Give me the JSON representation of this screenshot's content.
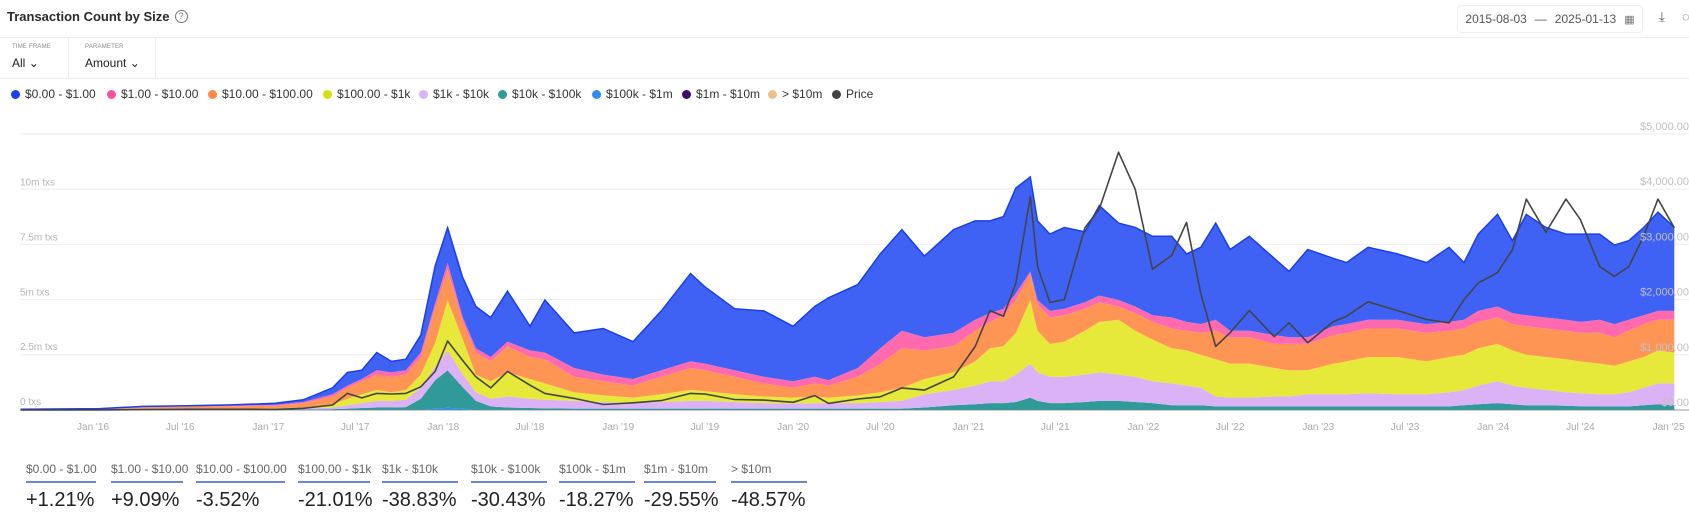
{
  "header": {
    "title": "Transaction Count by Size",
    "help_icon": "?",
    "date_from": "2015-08-03",
    "date_sep": "—",
    "date_to": "2025-01-13",
    "calendar_icon": "▦",
    "download_icon": "⤓",
    "more_icon": "◌"
  },
  "filters": {
    "time_frame": {
      "label": "TIME FRAME",
      "value": "All",
      "chevron": "⌄"
    },
    "parameter": {
      "label": "PARAMETER",
      "value": "Amount",
      "chevron": "⌄"
    }
  },
  "legend": [
    {
      "label": "$0.00 - $1.00",
      "color": "#1c3ff0"
    },
    {
      "label": "$1.00 - $10.00",
      "color": "#ff4fa3"
    },
    {
      "label": "$10.00 - $100.00",
      "color": "#ff8a3d"
    },
    {
      "label": "$100.00 - $1k",
      "color": "#d4e012"
    },
    {
      "label": "$1k - $10k",
      "color": "#dcb2f7"
    },
    {
      "label": "$10k - $100k",
      "color": "#2f9a97"
    },
    {
      "label": "$100k - $1m",
      "color": "#2a8ff0"
    },
    {
      "label": "$1m - $10m",
      "color": "#3e0a6b"
    },
    {
      "label": "> $10m",
      "color": "#efbf8e"
    },
    {
      "label": "Price",
      "color": "#444444"
    }
  ],
  "chart_data": {
    "type": "area",
    "stacked": true,
    "title": "Transaction Count by Size",
    "x_type": "date",
    "xlim": [
      "2015-08-03",
      "2025-01-13"
    ],
    "x_ticks": [
      "Jan '16",
      "Jul '16",
      "Jan '17",
      "Jul '17",
      "Jan '18",
      "Jul '18",
      "Jan '19",
      "Jul '19",
      "Jan '20",
      "Jul '20",
      "Jan '21",
      "Jul '21",
      "Jan '22",
      "Jul '22",
      "Jan '23",
      "Jul '23",
      "Jan '24",
      "Jul '24",
      "Jan '25"
    ],
    "x_tick_dates": [
      "2016-01-01",
      "2016-07-01",
      "2017-01-01",
      "2017-07-01",
      "2018-01-01",
      "2018-07-01",
      "2019-01-01",
      "2019-07-01",
      "2020-01-01",
      "2020-07-01",
      "2021-01-01",
      "2021-07-01",
      "2022-01-01",
      "2022-07-01",
      "2023-01-01",
      "2023-07-01",
      "2024-01-01",
      "2024-07-01",
      "2025-01-01"
    ],
    "y_left": {
      "unit": "m txs",
      "ylim": [
        0,
        10
      ],
      "ticks": [
        "0 txs",
        "2.5m txs",
        "5m txs",
        "7.5m txs",
        "10m txs"
      ],
      "tick_values": [
        0,
        2.5,
        5,
        7.5,
        10
      ]
    },
    "y_right": {
      "ylim": [
        0,
        5000
      ],
      "ticks": [
        "$0.00",
        "$1,000.00",
        "$2,000.00",
        "$3,000.00",
        "$4,000.00",
        "$5,000.00"
      ],
      "tick_values": [
        0,
        1000,
        2000,
        3000,
        4000,
        5000
      ]
    },
    "grid": true,
    "legend_position": "top-left",
    "x": [
      "2015-08-03",
      "2016-01-15",
      "2016-04-15",
      "2016-07-15",
      "2016-10-15",
      "2017-01-15",
      "2017-03-15",
      "2017-05-15",
      "2017-06-15",
      "2017-07-15",
      "2017-08-15",
      "2017-09-15",
      "2017-10-15",
      "2017-11-15",
      "2017-12-15",
      "2018-01-10",
      "2018-02-10",
      "2018-03-10",
      "2018-04-10",
      "2018-05-15",
      "2018-07-01",
      "2018-08-01",
      "2018-10-01",
      "2018-12-01",
      "2019-02-01",
      "2019-04-01",
      "2019-06-01",
      "2019-07-01",
      "2019-09-01",
      "2019-11-01",
      "2020-01-01",
      "2020-02-15",
      "2020-03-15",
      "2020-05-15",
      "2020-07-01",
      "2020-08-15",
      "2020-10-01",
      "2020-12-01",
      "2021-01-15",
      "2021-02-15",
      "2021-03-15",
      "2021-04-10",
      "2021-05-10",
      "2021-05-25",
      "2021-06-20",
      "2021-07-20",
      "2021-09-01",
      "2021-10-01",
      "2021-11-10",
      "2021-12-15",
      "2022-01-20",
      "2022-03-01",
      "2022-04-01",
      "2022-05-01",
      "2022-06-01",
      "2022-07-01",
      "2022-08-10",
      "2022-10-01",
      "2022-11-01",
      "2022-12-10",
      "2023-02-01",
      "2023-03-01",
      "2023-04-15",
      "2023-06-15",
      "2023-08-15",
      "2023-10-01",
      "2023-11-01",
      "2023-12-01",
      "2024-01-10",
      "2024-02-10",
      "2024-03-10",
      "2024-04-20",
      "2024-06-01",
      "2024-07-01",
      "2024-08-10",
      "2024-09-10",
      "2024-10-10",
      "2024-11-10",
      "2024-12-10",
      "2025-01-13"
    ],
    "series": [
      {
        "name": "> $10m",
        "color": "#efbf8e",
        "values": [
          0.001,
          0.001,
          0.001,
          0.001,
          0.001,
          0.001,
          0.001,
          0.001,
          0.001,
          0.001,
          0.001,
          0.001,
          0.001,
          0.001,
          0.001,
          0.001,
          0.001,
          0.001,
          0.001,
          0.001,
          0.001,
          0.001,
          0.001,
          0.001,
          0.001,
          0.001,
          0.001,
          0.001,
          0.001,
          0.001,
          0.001,
          0.001,
          0.001,
          0.001,
          0.001,
          0.001,
          0.001,
          0.001,
          0.001,
          0.001,
          0.001,
          0.001,
          0.001,
          0.001,
          0.001,
          0.001,
          0.001,
          0.001,
          0.001,
          0.001,
          0.001,
          0.001,
          0.001,
          0.001,
          0.001,
          0.001,
          0.001,
          0.001,
          0.001,
          0.001,
          0.001,
          0.001,
          0.001,
          0.001,
          0.001,
          0.001,
          0.001,
          0.001,
          0.001,
          0.001,
          0.001,
          0.001,
          0.001,
          0.001,
          0.001,
          0.001,
          0.001,
          0.001,
          0.001,
          0.001
        ]
      },
      {
        "name": "$1m - $10m",
        "color": "#3e0a6b",
        "values": [
          0.002,
          0.002,
          0.002,
          0.002,
          0.002,
          0.002,
          0.002,
          0.002,
          0.002,
          0.002,
          0.002,
          0.002,
          0.002,
          0.002,
          0.002,
          0.002,
          0.002,
          0.002,
          0.002,
          0.002,
          0.002,
          0.002,
          0.002,
          0.002,
          0.002,
          0.002,
          0.002,
          0.002,
          0.002,
          0.002,
          0.002,
          0.002,
          0.002,
          0.002,
          0.002,
          0.002,
          0.002,
          0.002,
          0.002,
          0.002,
          0.002,
          0.002,
          0.002,
          0.002,
          0.002,
          0.002,
          0.002,
          0.002,
          0.002,
          0.002,
          0.002,
          0.002,
          0.002,
          0.002,
          0.002,
          0.002,
          0.002,
          0.002,
          0.002,
          0.002,
          0.002,
          0.002,
          0.002,
          0.002,
          0.002,
          0.002,
          0.002,
          0.002,
          0.002,
          0.002,
          0.002,
          0.002,
          0.002,
          0.002,
          0.002,
          0.002,
          0.002,
          0.002,
          0.002,
          0.002
        ]
      },
      {
        "name": "$100k - $1m",
        "color": "#2a8ff0",
        "values": [
          0.01,
          0.01,
          0.01,
          0.01,
          0.01,
          0.01,
          0.01,
          0.01,
          0.01,
          0.01,
          0.01,
          0.01,
          0.01,
          0.01,
          0.05,
          0.1,
          0.05,
          0.01,
          0.01,
          0.01,
          0.01,
          0.01,
          0.01,
          0.01,
          0.01,
          0.01,
          0.01,
          0.01,
          0.01,
          0.01,
          0.01,
          0.01,
          0.01,
          0.01,
          0.01,
          0.01,
          0.01,
          0.01,
          0.01,
          0.01,
          0.01,
          0.01,
          0.01,
          0.01,
          0.01,
          0.01,
          0.01,
          0.01,
          0.01,
          0.01,
          0.01,
          0.01,
          0.01,
          0.01,
          0.01,
          0.01,
          0.01,
          0.01,
          0.01,
          0.01,
          0.01,
          0.01,
          0.01,
          0.01,
          0.01,
          0.01,
          0.01,
          0.01,
          0.01,
          0.01,
          0.01,
          0.01,
          0.01,
          0.01,
          0.01,
          0.01,
          0.01,
          0.01,
          0.01,
          0.01
        ]
      },
      {
        "name": "$10k - $100k",
        "color": "#2f9a97",
        "values": [
          0,
          0.005,
          0.01,
          0.01,
          0.01,
          0.01,
          0.01,
          0.03,
          0.05,
          0.08,
          0.1,
          0.1,
          0.12,
          0.5,
          1.3,
          1.7,
          1.0,
          0.4,
          0.15,
          0.1,
          0.08,
          0.06,
          0.05,
          0.05,
          0.05,
          0.05,
          0.05,
          0.05,
          0.05,
          0.05,
          0.05,
          0.05,
          0.05,
          0.05,
          0.05,
          0.05,
          0.1,
          0.2,
          0.25,
          0.3,
          0.3,
          0.35,
          0.55,
          0.4,
          0.3,
          0.3,
          0.35,
          0.4,
          0.4,
          0.35,
          0.3,
          0.2,
          0.2,
          0.2,
          0.15,
          0.15,
          0.15,
          0.15,
          0.15,
          0.15,
          0.15,
          0.15,
          0.15,
          0.15,
          0.15,
          0.15,
          0.2,
          0.25,
          0.3,
          0.25,
          0.2,
          0.2,
          0.18,
          0.16,
          0.15,
          0.15,
          0.15,
          0.2,
          0.25,
          0.2
        ]
      },
      {
        "name": "$1k - $10k",
        "color": "#dcb2f7",
        "values": [
          0,
          0.005,
          0.01,
          0.01,
          0.01,
          0.02,
          0.03,
          0.07,
          0.15,
          0.22,
          0.3,
          0.3,
          0.33,
          0.5,
          0.6,
          0.9,
          0.6,
          0.4,
          0.35,
          0.5,
          0.42,
          0.39,
          0.35,
          0.3,
          0.25,
          0.3,
          0.35,
          0.35,
          0.3,
          0.25,
          0.22,
          0.25,
          0.25,
          0.25,
          0.3,
          0.35,
          0.6,
          0.7,
          0.85,
          1.0,
          1.0,
          1.25,
          1.55,
          1.3,
          1.2,
          1.2,
          1.25,
          1.3,
          1.2,
          1.15,
          1.0,
          1.0,
          0.9,
          0.8,
          0.45,
          0.4,
          0.4,
          0.45,
          0.45,
          0.55,
          0.55,
          0.55,
          0.6,
          0.55,
          0.55,
          0.65,
          0.7,
          0.85,
          1.0,
          0.85,
          0.8,
          0.7,
          0.62,
          0.59,
          0.55,
          0.55,
          0.65,
          0.8,
          0.95,
          1.0
        ]
      },
      {
        "name": "$100.00 - $1k",
        "color": "#e6e83a",
        "values": [
          0,
          0.01,
          0.03,
          0.03,
          0.03,
          0.03,
          0.06,
          0.15,
          0.3,
          0.4,
          0.5,
          0.4,
          0.45,
          0.6,
          1.1,
          2.3,
          1.6,
          0.8,
          0.8,
          1.1,
          0.9,
          0.75,
          0.4,
          0.3,
          0.25,
          0.35,
          0.5,
          0.45,
          0.35,
          0.3,
          0.28,
          0.3,
          0.25,
          0.35,
          0.45,
          0.6,
          0.7,
          0.8,
          1.1,
          1.5,
          1.6,
          1.9,
          2.9,
          1.9,
          1.5,
          1.6,
          2.0,
          2.3,
          2.5,
          2.1,
          1.9,
          1.6,
          1.6,
          1.5,
          1.7,
          1.55,
          1.55,
          1.3,
          1.2,
          1.1,
          1.4,
          1.5,
          1.65,
          1.7,
          1.5,
          1.6,
          1.6,
          1.7,
          1.7,
          1.6,
          1.5,
          1.5,
          1.5,
          1.45,
          1.4,
          1.3,
          1.4,
          1.4,
          1.5,
          1.4
        ]
      },
      {
        "name": "$10.00 - $100.00",
        "color": "#ff9555",
        "values": [
          0.005,
          0.02,
          0.07,
          0.09,
          0.11,
          0.12,
          0.2,
          0.35,
          0.5,
          0.6,
          0.7,
          0.7,
          0.7,
          0.8,
          1.6,
          1.4,
          0.8,
          1.0,
          0.9,
          1.2,
          1.0,
          1.1,
          0.7,
          0.65,
          0.55,
          0.8,
          1.0,
          0.95,
          0.8,
          0.6,
          0.45,
          0.6,
          0.55,
          0.85,
          1.3,
          1.8,
          1.3,
          1.2,
          1.4,
          1.2,
          1.4,
          1.5,
          1.2,
          1.2,
          1.2,
          1.2,
          1.0,
          0.9,
          0.6,
          0.8,
          0.8,
          0.9,
          0.9,
          1.0,
          1.3,
          1.2,
          1.2,
          1.1,
          1.2,
          1.2,
          1.3,
          1.3,
          1.3,
          1.3,
          1.3,
          1.2,
          1.2,
          1.2,
          1.2,
          1.2,
          1.3,
          1.3,
          1.3,
          1.3,
          1.4,
          1.3,
          1.4,
          1.5,
          1.4,
          1.5
        ]
      },
      {
        "name": "$1.00 - $10.00",
        "color": "#ff6aae",
        "values": [
          0.005,
          0.005,
          0.02,
          0.02,
          0.03,
          0.04,
          0.05,
          0.1,
          0.1,
          0.1,
          0.2,
          0.2,
          0.2,
          0.2,
          0.2,
          0.3,
          0.2,
          0.2,
          0.2,
          0.2,
          0.3,
          0.3,
          0.4,
          0.3,
          0.3,
          0.3,
          0.3,
          0.3,
          0.3,
          0.3,
          0.3,
          0.3,
          0.25,
          0.4,
          0.7,
          0.8,
          0.6,
          0.6,
          0.5,
          0.4,
          0.3,
          0.3,
          0.1,
          0.2,
          0.3,
          0.3,
          0.3,
          0.3,
          0.3,
          0.3,
          0.3,
          0.5,
          0.4,
          0.4,
          0.5,
          0.3,
          0.3,
          0.4,
          0.3,
          0.3,
          0.4,
          0.4,
          0.4,
          0.4,
          0.4,
          0.4,
          0.4,
          0.5,
          0.5,
          0.5,
          0.5,
          0.5,
          0.5,
          0.5,
          0.6,
          0.6,
          0.5,
          0.4,
          0.4,
          0.4
        ]
      },
      {
        "name": "$0.00 - $1.00",
        "color": "#3f62f5",
        "values": [
          0.01,
          0.005,
          0.01,
          0.02,
          0.03,
          0.07,
          0.1,
          0.3,
          0.6,
          0.4,
          0.8,
          0.5,
          0.5,
          0.8,
          1.7,
          1.6,
          1.8,
          1.9,
          1.8,
          2.3,
          1.1,
          2.4,
          1.6,
          2.1,
          1.7,
          2.7,
          4.0,
          3.5,
          2.8,
          3.0,
          2.5,
          3.2,
          3.75,
          3.8,
          4.3,
          4.6,
          3.7,
          4.7,
          4.5,
          4.2,
          4.2,
          4.8,
          4.3,
          3.6,
          3.5,
          3.7,
          3.2,
          4.1,
          3.5,
          3.6,
          3.6,
          3.7,
          3.1,
          3.5,
          4.4,
          3.7,
          4.3,
          3.5,
          3.0,
          4.0,
          3.1,
          2.8,
          3.3,
          3.0,
          2.8,
          3.4,
          2.6,
          3.5,
          4.2,
          3.3,
          4.6,
          4.1,
          3.9,
          4.0,
          3.9,
          3.6,
          3.6,
          4.0,
          4.5,
          3.8
        ]
      }
    ],
    "price": {
      "name": "Price",
      "color": "#444444",
      "axis": "right",
      "values": [
        1,
        1,
        9,
        12,
        12,
        10,
        30,
        90,
        300,
        220,
        300,
        290,
        300,
        420,
        700,
        1250,
        900,
        600,
        400,
        700,
        450,
        300,
        210,
        100,
        130,
        170,
        300,
        290,
        190,
        180,
        140,
        260,
        120,
        200,
        240,
        400,
        360,
        600,
        1150,
        1800,
        1700,
        2300,
        3870,
        2600,
        1950,
        2000,
        3300,
        3640,
        4670,
        4000,
        2550,
        2800,
        3400,
        2100,
        1150,
        1400,
        1800,
        1330,
        1580,
        1220,
        1600,
        1700,
        1960,
        1800,
        1640,
        1580,
        2000,
        2300,
        2490,
        2900,
        3820,
        3220,
        3820,
        3450,
        2600,
        2420,
        2600,
        3150,
        3820,
        3300
      ]
    }
  },
  "stats": [
    {
      "label": "$0.00 - $1.00",
      "value": "+1.21%"
    },
    {
      "label": "$1.00 - $10.00",
      "value": "+9.09%"
    },
    {
      "label": "$10.00 - $100.00",
      "value": "-3.52%"
    },
    {
      "label": "$100.00 - $1k",
      "value": "-21.01%"
    },
    {
      "label": "$1k - $10k",
      "value": "-38.83%"
    },
    {
      "label": "$10k - $100k",
      "value": "-30.43%"
    },
    {
      "label": "$100k - $1m",
      "value": "-18.27%"
    },
    {
      "label": "$1m - $10m",
      "value": "-29.55%"
    },
    {
      "label": "> $10m",
      "value": "-48.57%"
    }
  ]
}
